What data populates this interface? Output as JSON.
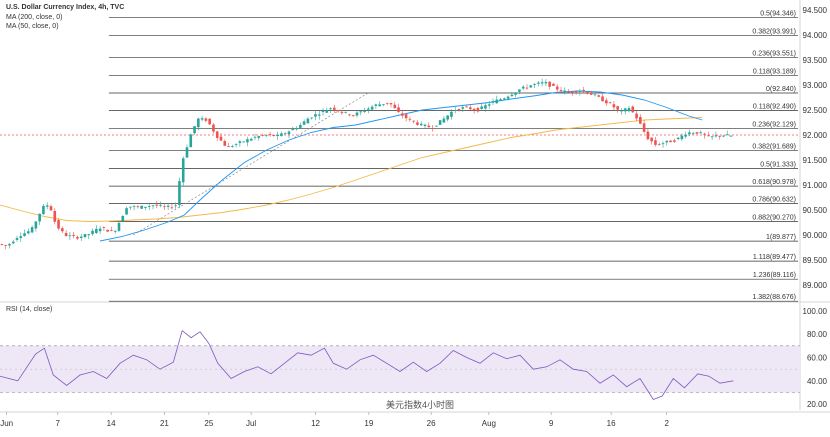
{
  "legend": {
    "title": "U.S. Dollar Currency Index, 4h, TVC",
    "ma200": "MA (200, close, 0)",
    "ma50": "MA (50, close, 0)",
    "rsi": "RSI (14, close)"
  },
  "watermark": "美元指数4小时图",
  "colors": {
    "candle_up": "#26a69a",
    "candle_down": "#ef5350",
    "ma50": "#2196f3",
    "ma200": "#f5b849",
    "rsi_line": "#7e57c2",
    "rsi_band": "#ede7f6",
    "fib_line": "#333333",
    "price_line": "#ef5350"
  },
  "chart_data": [
    {
      "type": "candlestick",
      "title": "U.S. Dollar Currency Index, 4h, TVC",
      "x_ticks": [
        "Jun",
        "7",
        "14",
        "21",
        "25",
        "Jul",
        "12",
        "19",
        "26",
        "Aug",
        "9",
        "16",
        "2"
      ],
      "y_ticks": [
        89.0,
        89.5,
        90.0,
        90.5,
        91.0,
        91.5,
        92.0,
        92.5,
        93.0,
        93.5,
        94.0,
        94.5
      ],
      "ylim": [
        88.7,
        94.7
      ],
      "current_price": 92.0,
      "fib_levels": [
        {
          "label": "0.5(94.346)",
          "value": 94.346
        },
        {
          "label": "0.382(93.991)",
          "value": 93.991
        },
        {
          "label": "0.236(93.551)",
          "value": 93.551
        },
        {
          "label": "0.118(93.189)",
          "value": 93.189
        },
        {
          "label": "0(92.840)",
          "value": 92.84
        },
        {
          "label": "0.118(92.490)",
          "value": 92.49
        },
        {
          "label": "0.236(92.129)",
          "value": 92.129
        },
        {
          "label": "0.382(91.689)",
          "value": 91.689
        },
        {
          "label": "0.5(91.333)",
          "value": 91.333
        },
        {
          "label": "0.618(90.978)",
          "value": 90.978
        },
        {
          "label": "0.786(90.632)",
          "value": 90.632
        },
        {
          "label": "0.882(90.270)",
          "value": 90.27
        },
        {
          "label": "1(89.877)",
          "value": 89.877
        },
        {
          "label": "1.118(89.477)",
          "value": 89.477
        },
        {
          "label": "1.236(89.116)",
          "value": 89.116
        },
        {
          "label": "1.382(88.676)",
          "value": 88.676
        }
      ],
      "price_path": [
        [
          0,
          89.82
        ],
        [
          0.4,
          89.78
        ],
        [
          0.9,
          89.98
        ],
        [
          1.5,
          90.1
        ],
        [
          2.0,
          90.55
        ],
        [
          2.3,
          90.62
        ],
        [
          2.6,
          90.2
        ],
        [
          3.0,
          90.0
        ],
        [
          3.5,
          89.95
        ],
        [
          4.0,
          90.0
        ],
        [
          4.6,
          90.15
        ],
        [
          5.2,
          90.05
        ],
        [
          5.5,
          90.3
        ],
        [
          5.8,
          90.58
        ],
        [
          6.3,
          90.55
        ],
        [
          7.0,
          90.6
        ],
        [
          7.6,
          90.55
        ],
        [
          8.0,
          90.6
        ],
        [
          8.3,
          91.5
        ],
        [
          8.7,
          92.05
        ],
        [
          9.0,
          92.32
        ],
        [
          9.4,
          92.3
        ],
        [
          9.8,
          92.0
        ],
        [
          10.3,
          91.75
        ],
        [
          10.9,
          91.85
        ],
        [
          11.5,
          91.95
        ],
        [
          12.0,
          92.0
        ],
        [
          12.6,
          91.98
        ],
        [
          13.2,
          92.1
        ],
        [
          13.6,
          92.2
        ],
        [
          14.0,
          92.35
        ],
        [
          14.5,
          92.45
        ],
        [
          15.0,
          92.55
        ],
        [
          15.5,
          92.45
        ],
        [
          16.0,
          92.4
        ],
        [
          16.5,
          92.5
        ],
        [
          17.0,
          92.6
        ],
        [
          17.6,
          92.65
        ],
        [
          18.0,
          92.45
        ],
        [
          18.5,
          92.3
        ],
        [
          19.0,
          92.2
        ],
        [
          19.5,
          92.15
        ],
        [
          20.0,
          92.3
        ],
        [
          20.5,
          92.5
        ],
        [
          21.0,
          92.55
        ],
        [
          21.6,
          92.5
        ],
        [
          22.2,
          92.65
        ],
        [
          22.8,
          92.75
        ],
        [
          23.4,
          92.9
        ],
        [
          24.0,
          93.0
        ],
        [
          24.6,
          93.05
        ],
        [
          25.0,
          92.95
        ],
        [
          25.6,
          92.85
        ],
        [
          26.2,
          92.9
        ],
        [
          26.8,
          92.8
        ],
        [
          27.2,
          92.7
        ],
        [
          27.6,
          92.6
        ],
        [
          28.0,
          92.45
        ],
        [
          28.4,
          92.55
        ],
        [
          28.8,
          92.3
        ],
        [
          29.2,
          91.95
        ],
        [
          29.6,
          91.8
        ],
        [
          30.0,
          91.85
        ],
        [
          30.5,
          91.9
        ],
        [
          31.0,
          92.05
        ],
        [
          31.5,
          92.05
        ],
        [
          32.0,
          91.95
        ],
        [
          32.5,
          92.0
        ],
        [
          33.0,
          91.98
        ]
      ],
      "ma50": [
        [
          4.5,
          89.88
        ],
        [
          5.5,
          89.97
        ],
        [
          6.5,
          90.1
        ],
        [
          7.5,
          90.25
        ],
        [
          8.3,
          90.4
        ],
        [
          9.0,
          90.7
        ],
        [
          10.0,
          91.1
        ],
        [
          11.0,
          91.45
        ],
        [
          12.0,
          91.7
        ],
        [
          13.0,
          91.9
        ],
        [
          14.0,
          92.05
        ],
        [
          15.0,
          92.15
        ],
        [
          16.0,
          92.2
        ],
        [
          17.0,
          92.3
        ],
        [
          18.0,
          92.4
        ],
        [
          19.0,
          92.5
        ],
        [
          20.0,
          92.55
        ],
        [
          21.0,
          92.6
        ],
        [
          22.0,
          92.65
        ],
        [
          23.0,
          92.72
        ],
        [
          24.0,
          92.78
        ],
        [
          25.0,
          92.85
        ],
        [
          26.0,
          92.88
        ],
        [
          27.0,
          92.86
        ],
        [
          28.0,
          92.8
        ],
        [
          29.0,
          92.7
        ],
        [
          30.0,
          92.55
        ],
        [
          31.0,
          92.38
        ],
        [
          31.6,
          92.3
        ]
      ],
      "ma200": [
        [
          0,
          90.6
        ],
        [
          1.0,
          90.48
        ],
        [
          2.0,
          90.37
        ],
        [
          3.0,
          90.29
        ],
        [
          4.0,
          90.27
        ],
        [
          5.0,
          90.28
        ],
        [
          6.0,
          90.3
        ],
        [
          7.0,
          90.32
        ],
        [
          8.0,
          90.35
        ],
        [
          9.0,
          90.4
        ],
        [
          10.0,
          90.45
        ],
        [
          11.0,
          90.52
        ],
        [
          12.0,
          90.6
        ],
        [
          13.0,
          90.7
        ],
        [
          14.0,
          90.82
        ],
        [
          15.0,
          90.95
        ],
        [
          16.0,
          91.1
        ],
        [
          17.0,
          91.25
        ],
        [
          18.0,
          91.4
        ],
        [
          19.0,
          91.55
        ],
        [
          20.0,
          91.65
        ],
        [
          21.0,
          91.75
        ],
        [
          22.0,
          91.85
        ],
        [
          23.0,
          91.95
        ],
        [
          24.0,
          92.02
        ],
        [
          25.0,
          92.1
        ],
        [
          26.0,
          92.15
        ],
        [
          27.0,
          92.2
        ],
        [
          28.0,
          92.25
        ],
        [
          29.0,
          92.3
        ],
        [
          30.0,
          92.32
        ],
        [
          31.0,
          92.34
        ],
        [
          31.6,
          92.35
        ]
      ]
    },
    {
      "type": "line",
      "title": "RSI (14, close)",
      "y_ticks": [
        20.0,
        40.0,
        60.0,
        80.0,
        100.0
      ],
      "ylim": [
        15,
        105
      ],
      "bands": [
        30,
        70
      ],
      "mid": 50,
      "values": [
        [
          0,
          44
        ],
        [
          0.8,
          40
        ],
        [
          1.6,
          63
        ],
        [
          2.0,
          68
        ],
        [
          2.4,
          45
        ],
        [
          3.0,
          36
        ],
        [
          3.6,
          45
        ],
        [
          4.2,
          48
        ],
        [
          4.8,
          42
        ],
        [
          5.4,
          55
        ],
        [
          6.0,
          62
        ],
        [
          6.6,
          58
        ],
        [
          7.2,
          50
        ],
        [
          7.8,
          56
        ],
        [
          8.2,
          83
        ],
        [
          8.6,
          77
        ],
        [
          9.0,
          82
        ],
        [
          9.4,
          72
        ],
        [
          9.8,
          55
        ],
        [
          10.4,
          42
        ],
        [
          11.0,
          48
        ],
        [
          11.6,
          52
        ],
        [
          12.2,
          46
        ],
        [
          12.8,
          55
        ],
        [
          13.4,
          64
        ],
        [
          14.0,
          62
        ],
        [
          14.6,
          68
        ],
        [
          15.0,
          55
        ],
        [
          15.6,
          50
        ],
        [
          16.2,
          58
        ],
        [
          16.8,
          62
        ],
        [
          17.4,
          55
        ],
        [
          18.0,
          48
        ],
        [
          18.6,
          56
        ],
        [
          19.2,
          48
        ],
        [
          19.8,
          55
        ],
        [
          20.4,
          66
        ],
        [
          21.0,
          60
        ],
        [
          21.6,
          55
        ],
        [
          22.2,
          64
        ],
        [
          22.8,
          59
        ],
        [
          23.4,
          62
        ],
        [
          24.0,
          50
        ],
        [
          24.6,
          52
        ],
        [
          25.2,
          58
        ],
        [
          25.8,
          50
        ],
        [
          26.4,
          48
        ],
        [
          27.0,
          38
        ],
        [
          27.6,
          45
        ],
        [
          28.2,
          35
        ],
        [
          28.8,
          42
        ],
        [
          29.4,
          24
        ],
        [
          29.8,
          27
        ],
        [
          30.3,
          42
        ],
        [
          30.8,
          34
        ],
        [
          31.4,
          46
        ],
        [
          31.9,
          44
        ],
        [
          32.4,
          38
        ],
        [
          33.0,
          40
        ]
      ]
    }
  ]
}
